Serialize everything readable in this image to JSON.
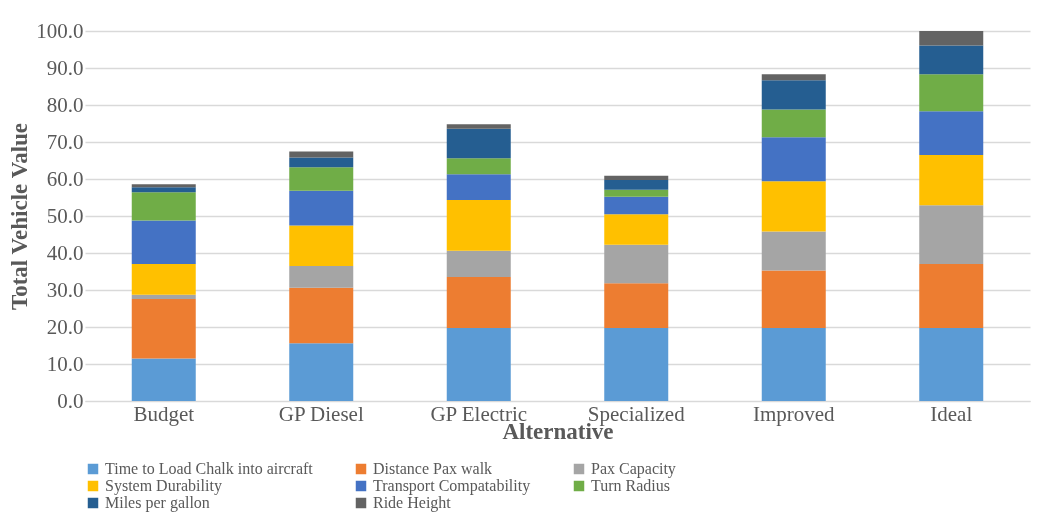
{
  "chart_data": {
    "type": "bar",
    "stacked": true,
    "xlabel": "Alternative",
    "ylabel": "Total Vehicle Value",
    "categories": [
      "Budget",
      "GP Diesel",
      "GP Electric",
      "Specialized",
      "Improved",
      "Ideal"
    ],
    "series": [
      {
        "name": "Time to Load Chalk into aircraft",
        "color": "#5b9bd5",
        "values": [
          11.5,
          15.6,
          19.7,
          19.7,
          19.7,
          19.7
        ]
      },
      {
        "name": "Distance Pax walk",
        "color": "#ed7d31",
        "values": [
          16.1,
          15.0,
          13.8,
          12.1,
          15.6,
          17.3
        ]
      },
      {
        "name": "Pax Capacity",
        "color": "#a5a5a5",
        "values": [
          1.1,
          5.9,
          7.1,
          10.4,
          10.5,
          15.9
        ]
      },
      {
        "name": "System Durability",
        "color": "#ffc000",
        "values": [
          8.3,
          10.9,
          13.7,
          8.3,
          13.6,
          13.6
        ]
      },
      {
        "name": "Transport Compatability",
        "color": "#4472c4",
        "values": [
          11.8,
          9.4,
          7.0,
          4.7,
          11.9,
          11.8
        ]
      },
      {
        "name": "Turn Radius",
        "color": "#70ad47",
        "values": [
          7.6,
          6.4,
          4.3,
          1.9,
          7.5,
          10.0
        ]
      },
      {
        "name": "Miles per gallon",
        "color": "#255e91",
        "values": [
          1.4,
          2.6,
          8.0,
          2.6,
          7.9,
          7.8
        ]
      },
      {
        "name": "Ride Height",
        "color": "#636363",
        "values": [
          0.8,
          1.6,
          1.2,
          1.2,
          1.6,
          3.9
        ]
      }
    ],
    "ylim": [
      0,
      100
    ],
    "yticks": [
      {
        "value": 0,
        "label": "0.0"
      },
      {
        "value": 10,
        "label": "10.0"
      },
      {
        "value": 20,
        "label": "20.0"
      },
      {
        "value": 30,
        "label": "30.0"
      },
      {
        "value": 40,
        "label": "40.0"
      },
      {
        "value": 50,
        "label": "50.0"
      },
      {
        "value": 60,
        "label": "60.0"
      },
      {
        "value": 70,
        "label": "70.0"
      },
      {
        "value": 80,
        "label": "80.0"
      },
      {
        "value": 90,
        "label": "90.0"
      },
      {
        "value": 100,
        "label": "100.0"
      }
    ],
    "grid": "y",
    "legend": "bottom"
  }
}
